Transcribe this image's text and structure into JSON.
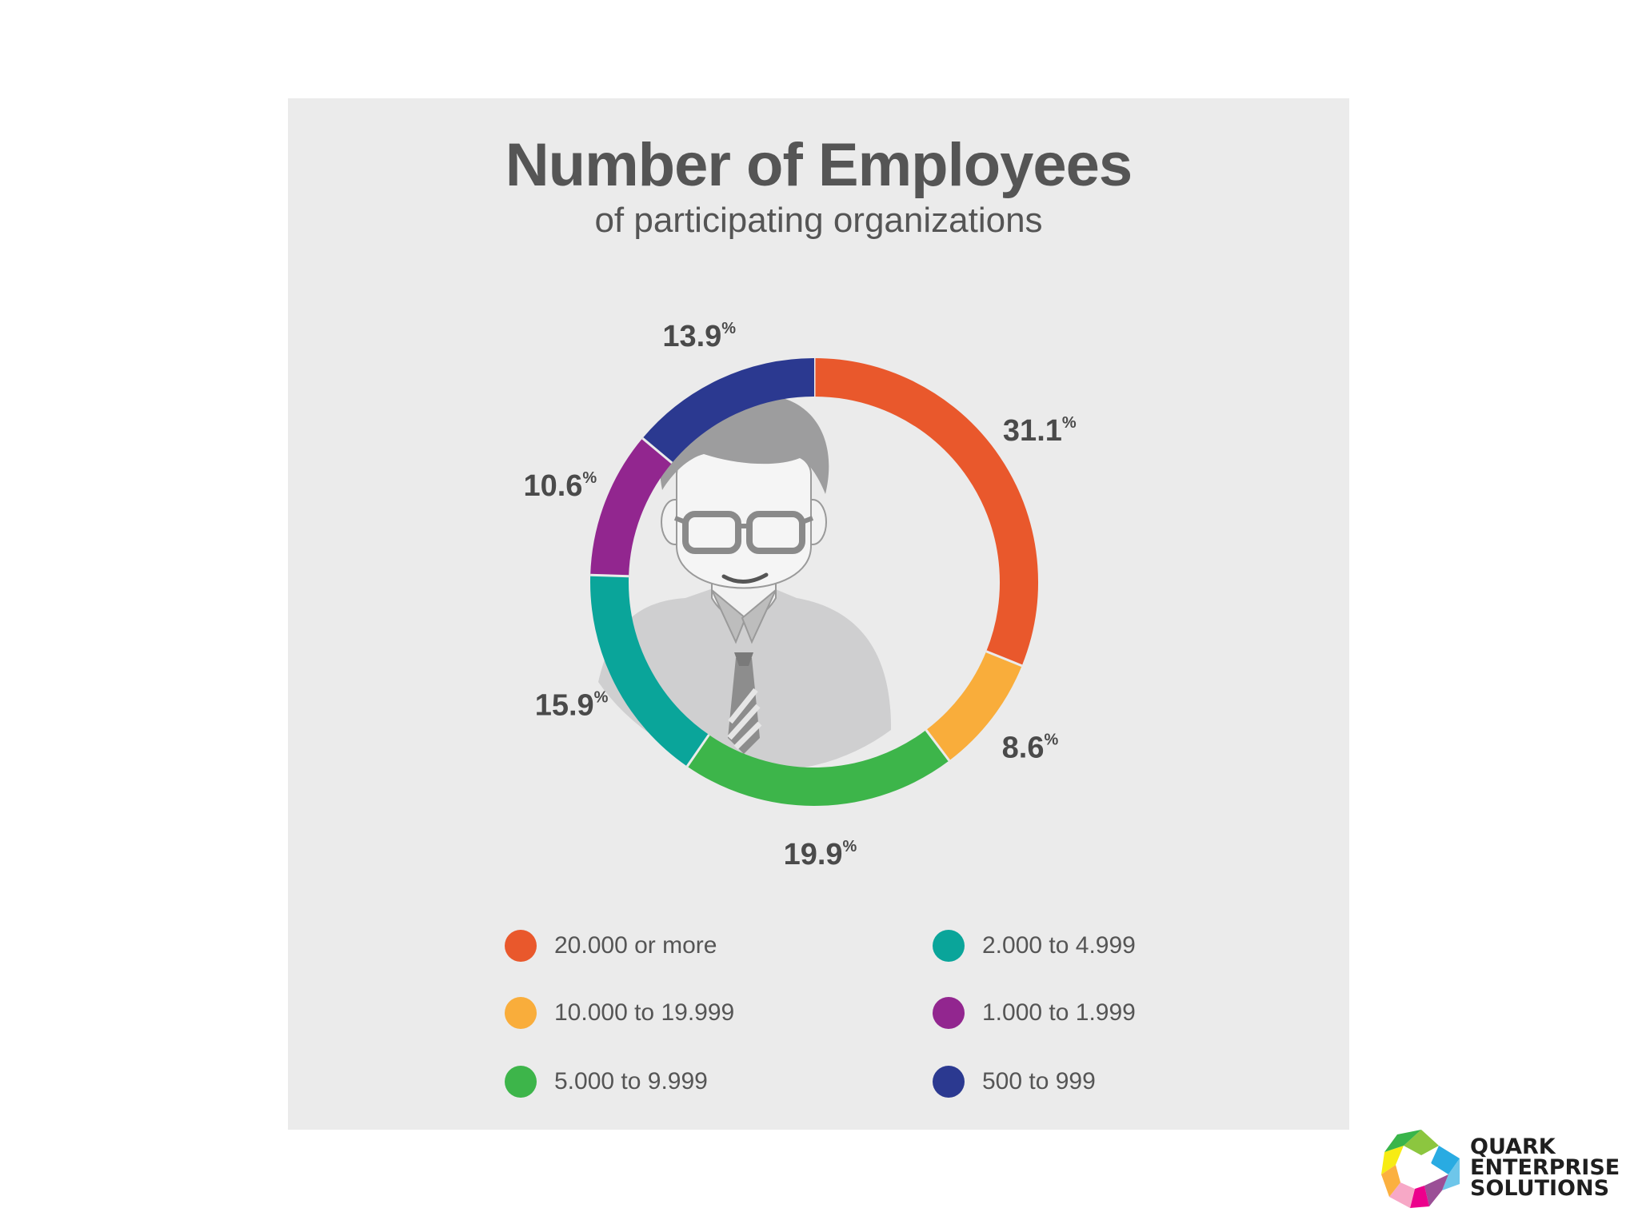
{
  "chart_data": {
    "type": "donut",
    "title": "Number of Employees",
    "subtitle": "of participating organizations",
    "unit": "%",
    "slices": [
      {
        "label": "20.000 or more",
        "value": 31.1,
        "display": "31.1",
        "color": "#e9582c"
      },
      {
        "label": "10.000 to 19.999",
        "value": 8.6,
        "display": "8.6",
        "color": "#f9ad3b"
      },
      {
        "label": "5.000 to 9.999",
        "value": 19.9,
        "display": "19.9",
        "color": "#3db54a"
      },
      {
        "label": "2.000 to 4.999",
        "value": 15.9,
        "display": "15.9",
        "color": "#0aa59a"
      },
      {
        "label": "1.000 to 1.999",
        "value": 10.6,
        "display": "10.6",
        "color": "#92268f"
      },
      {
        "label": "500 to 999",
        "value": 13.9,
        "display": "13.9",
        "color": "#2b3990"
      }
    ],
    "legend_placement": "bottom"
  },
  "logo": {
    "lines": [
      "QUARK",
      "ENTERPRISE",
      "SOLUTIONS"
    ]
  }
}
